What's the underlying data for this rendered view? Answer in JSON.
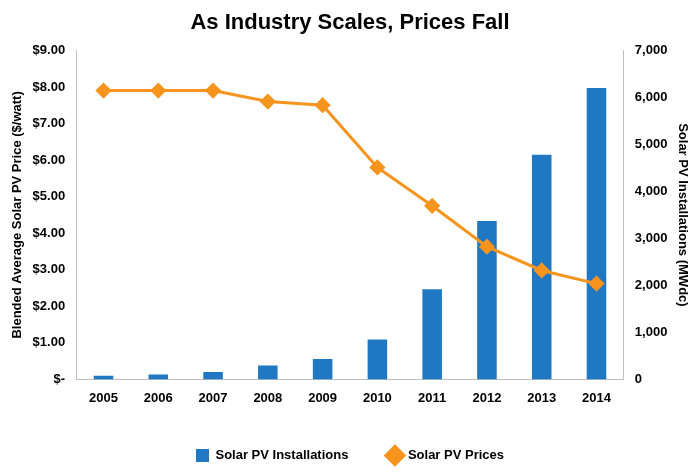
{
  "chart_data": {
    "type": "bar",
    "title": "As Industry Scales, Prices Fall",
    "categories": [
      "2005",
      "2006",
      "2007",
      "2008",
      "2009",
      "2010",
      "2011",
      "2012",
      "2013",
      "2014"
    ],
    "y_label": "Blended Average Solar PV Price ($/watt)",
    "y2_label": "Solar PV Installations (MWdc)",
    "series": [
      {
        "name": "Solar PV Installations",
        "type": "bar",
        "color": "#1f78c1",
        "axis": "y2",
        "values": [
          79,
          105,
          160,
          298,
          435,
          850,
          1920,
          3370,
          4780,
          6200
        ]
      },
      {
        "name": "Solar PV Prices",
        "type": "line",
        "color": "#f7941d",
        "marker": "diamond",
        "axis": "y",
        "values": [
          7.9,
          7.9,
          7.9,
          7.6,
          7.5,
          5.8,
          4.75,
          3.63,
          2.98,
          2.62
        ]
      }
    ],
    "ylim": [
      0,
      9
    ],
    "yticks": [
      {
        "value": 0,
        "label": "$-"
      },
      {
        "value": 1,
        "label": "$1.00"
      },
      {
        "value": 2,
        "label": "$2.00"
      },
      {
        "value": 3,
        "label": "$3.00"
      },
      {
        "value": 4,
        "label": "$4.00"
      },
      {
        "value": 5,
        "label": "$5.00"
      },
      {
        "value": 6,
        "label": "$6.00"
      },
      {
        "value": 7,
        "label": "$7.00"
      },
      {
        "value": 8,
        "label": "$8.00"
      },
      {
        "value": 9,
        "label": "$9.00"
      }
    ],
    "y2lim": [
      0,
      7000
    ],
    "y2ticks": [
      0,
      {
        "value": 1000,
        "label": "1,000"
      },
      {
        "value": 2000,
        "label": "2,000"
      },
      {
        "value": 3000,
        "label": "3,000"
      },
      {
        "value": 4000,
        "label": "4,000"
      },
      {
        "value": 5000,
        "label": "5,000"
      },
      {
        "value": 6000,
        "label": "6,000"
      },
      {
        "value": 7000,
        "label": "7,000"
      }
    ],
    "grid": false,
    "legend": "bottom"
  }
}
